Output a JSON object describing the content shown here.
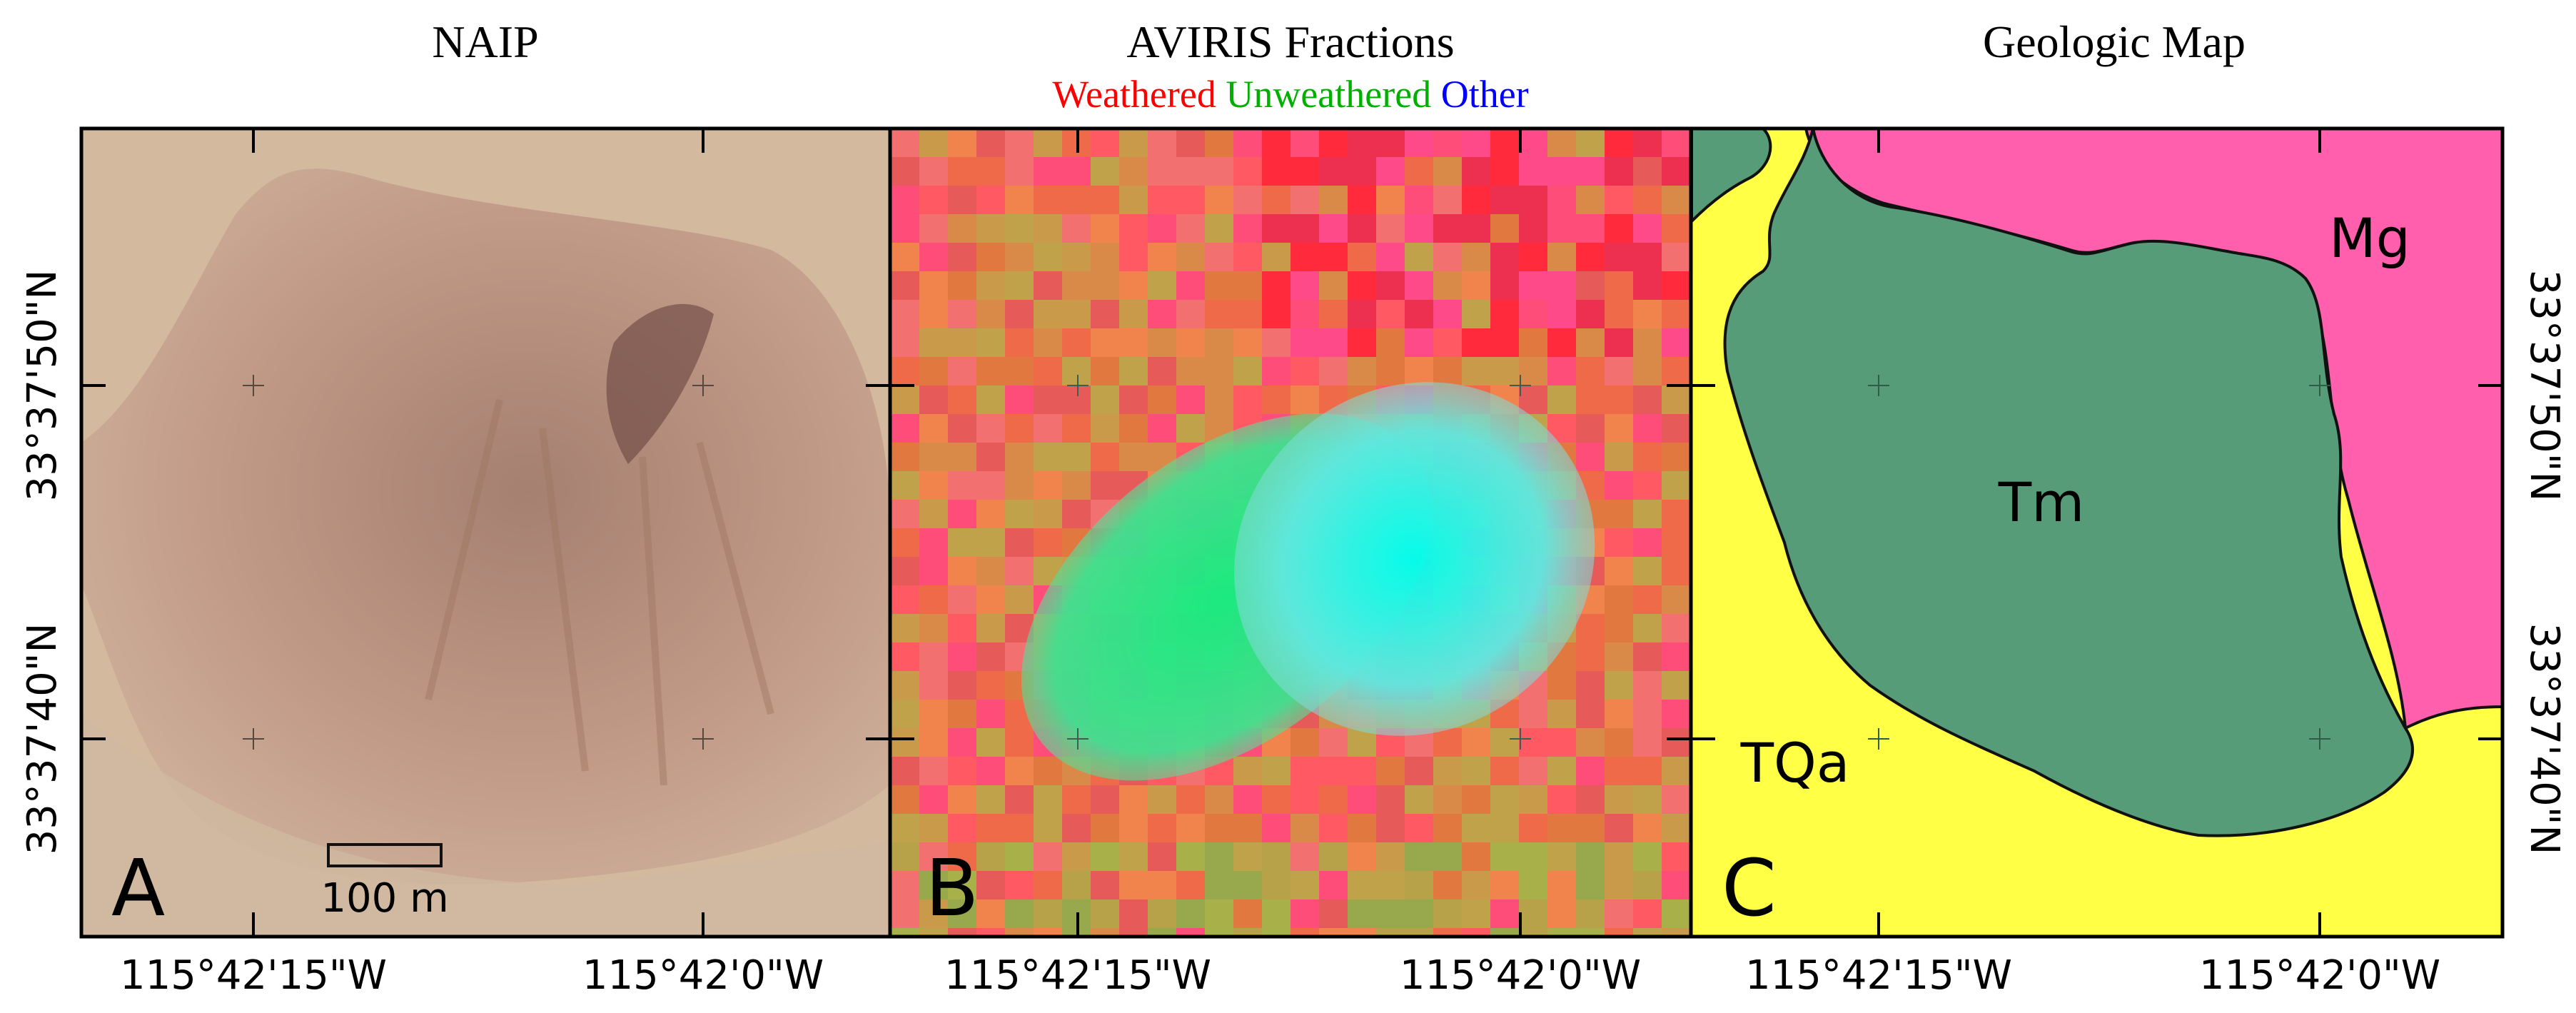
{
  "panels": [
    {
      "letter": "A",
      "title": "NAIP"
    },
    {
      "letter": "B",
      "title": "AVIRIS Fractions"
    },
    {
      "letter": "C",
      "title": "Geologic Map"
    }
  ],
  "legend_b": [
    {
      "label": "Weathered",
      "color": "#ff0000"
    },
    {
      "label": "Unweathered",
      "color": "#00b000"
    },
    {
      "label": "Other",
      "color": "#0000ff"
    }
  ],
  "x_ticks": [
    "115°42'15\"W",
    "115°42'0\"W"
  ],
  "y_ticks": [
    "33°37'50\"N",
    "33°37'40\"N"
  ],
  "scale_bar": {
    "label": "100 m"
  },
  "geology_units": [
    {
      "code": "Mg",
      "color": "#ff5fac"
    },
    {
      "code": "Tm",
      "color": "#569c78"
    },
    {
      "code": "TQa",
      "color": "#ffff46"
    }
  ]
}
